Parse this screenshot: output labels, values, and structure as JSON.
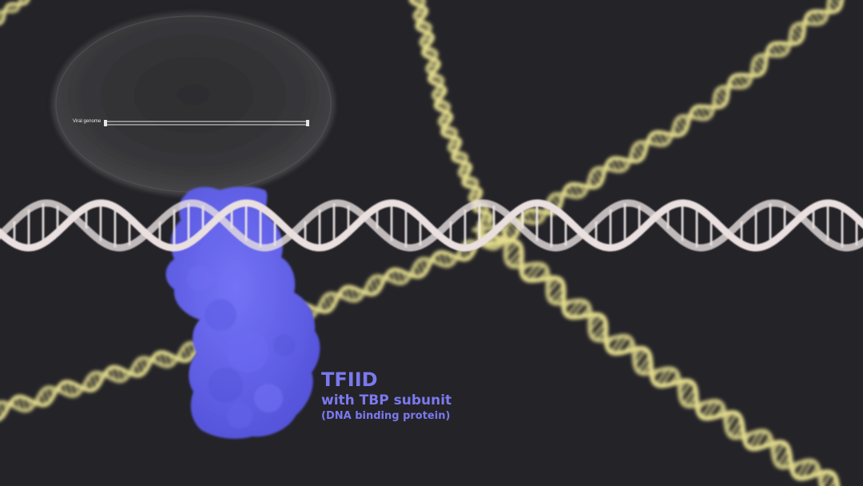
{
  "inset": {
    "genome_label": "Viral genome"
  },
  "caption": {
    "title": "TFIID",
    "subtitle": "with TBP subunit",
    "note": "(DNA binding protein)"
  },
  "colors": {
    "background": "#242328",
    "main_helix": "#e9e0df",
    "background_helix": "#e3dc8d",
    "protein": "#6968f0",
    "caption_text": "#7b79ee",
    "inset_lens": "#3b3b3e"
  },
  "icons": {
    "dna": "dna-helix-icon",
    "protein": "protein-blob-icon"
  }
}
